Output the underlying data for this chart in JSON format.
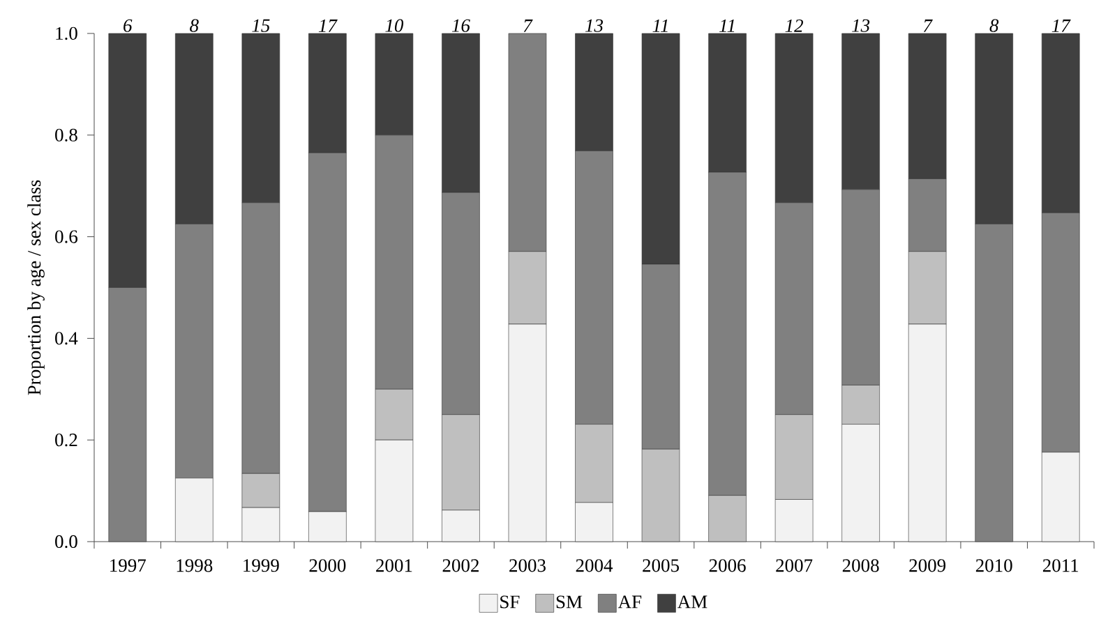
{
  "chart_data": {
    "type": "bar",
    "stacked": true,
    "ylabel": "Proportion by age / sex class",
    "categories": [
      "1997",
      "1998",
      "1999",
      "2000",
      "2001",
      "2002",
      "2003",
      "2004",
      "2005",
      "2006",
      "2007",
      "2008",
      "2009",
      "2010",
      "2011"
    ],
    "series": [
      {
        "name": "SF",
        "color": "#f2f2f2",
        "values": [
          0,
          0.125,
          0.067,
          0.059,
          0.2,
          0.062,
          0.428,
          0.077,
          0,
          0,
          0.083,
          0.231,
          0.428,
          0,
          0.176
        ]
      },
      {
        "name": "SM",
        "color": "#bfbfbf",
        "values": [
          0,
          0,
          0.067,
          0,
          0.1,
          0.188,
          0.143,
          0.154,
          0.182,
          0.091,
          0.167,
          0.077,
          0.143,
          0,
          0
        ]
      },
      {
        "name": "AF",
        "color": "#808080",
        "values": [
          0.5,
          0.5,
          0.533,
          0.706,
          0.5,
          0.437,
          0.429,
          0.538,
          0.364,
          0.636,
          0.417,
          0.385,
          0.143,
          0.625,
          0.471
        ]
      },
      {
        "name": "AM",
        "color": "#404040",
        "values": [
          0.5,
          0.375,
          0.333,
          0.235,
          0.2,
          0.313,
          0,
          0.231,
          0.454,
          0.273,
          0.333,
          0.307,
          0.286,
          0.375,
          0.353
        ]
      }
    ],
    "annotations": [
      {
        "text": "6",
        "x": "1997",
        "y": 1
      },
      {
        "text": "8",
        "x": "1998",
        "y": 1
      },
      {
        "text": "15",
        "x": "1999",
        "y": 1
      },
      {
        "text": "17",
        "x": "2000",
        "y": 1
      },
      {
        "text": "10",
        "x": "2001",
        "y": 1
      },
      {
        "text": "16",
        "x": "2002",
        "y": 1
      },
      {
        "text": "7",
        "x": "2003",
        "y": 1
      },
      {
        "text": "13",
        "x": "2004",
        "y": 1
      },
      {
        "text": "11",
        "x": "2005",
        "y": 1
      },
      {
        "text": "11",
        "x": "2006",
        "y": 1
      },
      {
        "text": "12",
        "x": "2007",
        "y": 1
      },
      {
        "text": "13",
        "x": "2008",
        "y": 1
      },
      {
        "text": "7",
        "x": "2009",
        "y": 1
      },
      {
        "text": "8",
        "x": "2010",
        "y": 1
      },
      {
        "text": "17",
        "x": "2011",
        "y": 1
      }
    ],
    "ylim": [
      0,
      1
    ],
    "yticks": [
      {
        "value": 0,
        "label": "0.0"
      },
      {
        "value": 0.2,
        "label": "0.2"
      },
      {
        "value": 0.4,
        "label": "0.4"
      },
      {
        "value": 0.6,
        "label": "0.6"
      },
      {
        "value": 0.8,
        "label": "0.8"
      },
      {
        "value": 1,
        "label": "1.0"
      }
    ],
    "grid": false,
    "legend": "bottom"
  }
}
